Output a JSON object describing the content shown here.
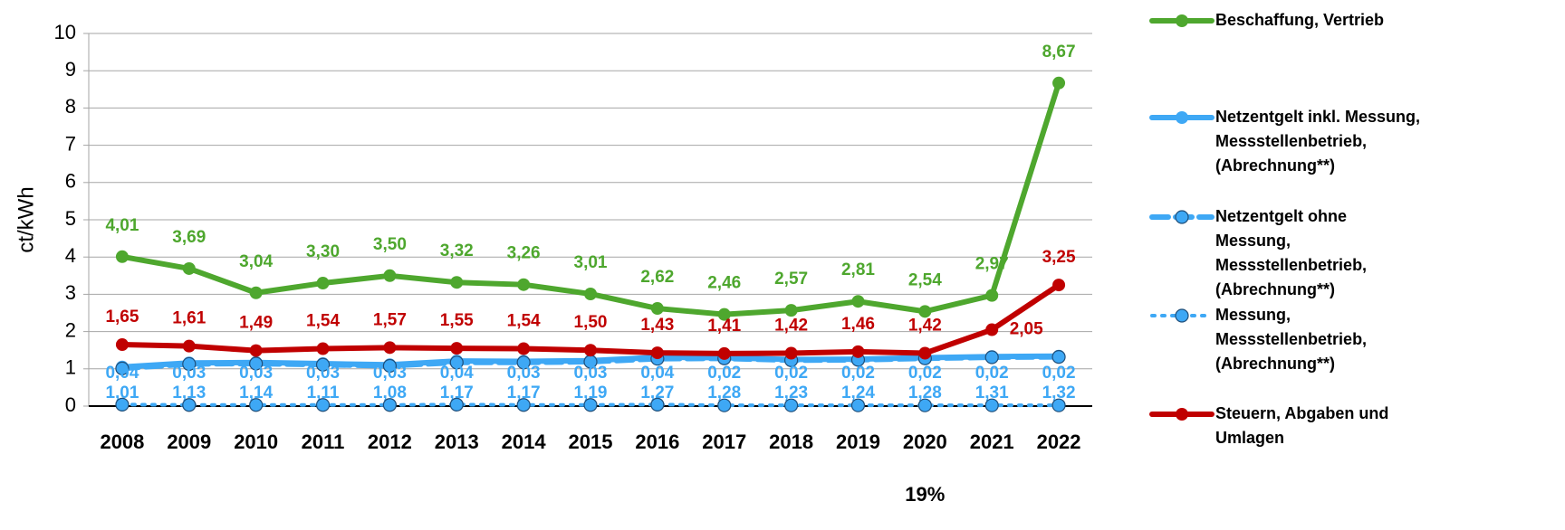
{
  "chart_data": {
    "type": "line",
    "y_label": "ct/kWh",
    "categories": [
      "2008",
      "2009",
      "2010",
      "2011",
      "2012",
      "2013",
      "2014",
      "2015",
      "2016",
      "2017",
      "2018",
      "2019",
      "2020",
      "2021",
      "2022"
    ],
    "annotation": "19%",
    "ylim": [
      0,
      10
    ],
    "yticks": [
      0,
      1,
      2,
      3,
      4,
      5,
      6,
      7,
      8,
      9,
      10
    ],
    "grid": true,
    "series": [
      {
        "name": "Beschaffung, Vertrieb",
        "color": "#4ea72e",
        "style": "solid",
        "values": [
          4.01,
          3.69,
          3.04,
          3.3,
          3.5,
          3.32,
          3.26,
          3.01,
          2.62,
          2.46,
          2.57,
          2.81,
          2.54,
          2.97,
          8.67
        ],
        "value_labels": [
          "4,01",
          "3,69",
          "3,04",
          "3,30",
          "3,50",
          "3,32",
          "3,26",
          "3,01",
          "2,62",
          "2,46",
          "2,57",
          "2,81",
          "2,54",
          "2,97",
          "8,67"
        ]
      },
      {
        "name": "Netzentgelt inkl. Messung, Messstellenbetrieb, (Abrechnung**)",
        "color": "#3ea8f5",
        "style": "solid",
        "values": [
          1.05,
          1.16,
          1.17,
          1.14,
          1.11,
          1.21,
          1.2,
          1.22,
          1.31,
          1.3,
          1.25,
          1.26,
          1.3,
          1.33,
          1.34
        ]
      },
      {
        "name": "Netzentgelt ohne Messung, Messstellenbetrieb, (Abrechnung**)",
        "color": "#3ea8f5",
        "style": "dashed",
        "values": [
          1.01,
          1.13,
          1.14,
          1.11,
          1.08,
          1.17,
          1.17,
          1.19,
          1.27,
          1.28,
          1.23,
          1.24,
          1.28,
          1.31,
          1.32
        ],
        "value_labels": [
          "1,01",
          "1,13",
          "1,14",
          "1,11",
          "1,08",
          "1,17",
          "1,17",
          "1,19",
          "1,27",
          "1,28",
          "1,23",
          "1,24",
          "1,28",
          "1,31",
          "1,32"
        ]
      },
      {
        "name": "Messung, Messstellenbetrieb, (Abrechnung**)",
        "color": "#3ea8f5",
        "style": "dotted",
        "values": [
          0.04,
          0.03,
          0.03,
          0.03,
          0.03,
          0.04,
          0.03,
          0.03,
          0.04,
          0.02,
          0.02,
          0.02,
          0.02,
          0.02,
          0.02
        ],
        "value_labels": [
          "0,04",
          "0,03",
          "0,03",
          "0,03",
          "0,03",
          "0,04",
          "0,03",
          "0,03",
          "0,04",
          "0,02",
          "0,02",
          "0,02",
          "0,02",
          "0,02",
          "0,02"
        ]
      },
      {
        "name": "Steuern, Abgaben und Umlagen",
        "color": "#c00000",
        "style": "solid",
        "values": [
          1.65,
          1.61,
          1.49,
          1.54,
          1.57,
          1.55,
          1.54,
          1.5,
          1.43,
          1.41,
          1.42,
          1.46,
          1.42,
          2.05,
          3.25
        ],
        "value_labels": [
          "1,65",
          "1,61",
          "1,49",
          "1,54",
          "1,57",
          "1,55",
          "1,54",
          "1,50",
          "1,43",
          "1,41",
          "1,42",
          "1,46",
          "1,42",
          "2,05",
          "3,25"
        ]
      }
    ]
  }
}
